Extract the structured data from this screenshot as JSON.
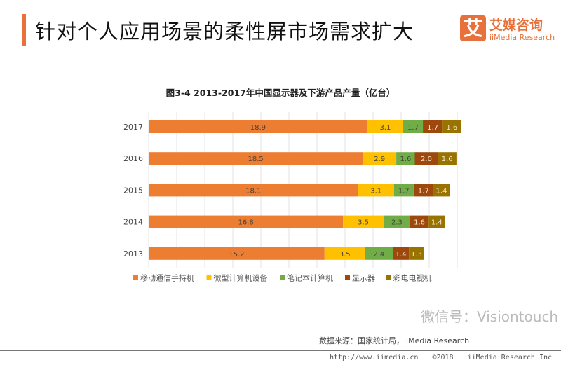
{
  "header": {
    "title": "针对个人应用场景的柔性屏市场需求扩大",
    "logo_cn": "艾媒咨询",
    "logo_en": "iiMedia Research",
    "logo_mark": "艾"
  },
  "chart_data": {
    "type": "bar",
    "orientation": "horizontal",
    "stacked": true,
    "title": "图3-4 2013-2017年中国显示器及下游产品产量（亿台）",
    "categories": [
      "2017",
      "2016",
      "2015",
      "2014",
      "2013"
    ],
    "series": [
      {
        "name": "移动通信手持机",
        "color": "#ED7D31",
        "values": [
          18.9,
          18.5,
          18.1,
          16.8,
          15.2
        ]
      },
      {
        "name": "微型计算机设备",
        "color": "#FFC000",
        "values": [
          3.1,
          2.9,
          3.1,
          3.5,
          3.5
        ]
      },
      {
        "name": "笔记本计算机",
        "color": "#70AD47",
        "values": [
          1.7,
          1.6,
          1.7,
          2.3,
          2.4
        ]
      },
      {
        "name": "显示器",
        "color": "#9E480E",
        "values": [
          1.7,
          2.0,
          1.7,
          1.6,
          1.4
        ]
      },
      {
        "name": "彩电电视机",
        "color": "#997300",
        "values": [
          1.6,
          1.6,
          1.4,
          1.4,
          1.3
        ]
      }
    ],
    "grid": true,
    "legend": "bottom",
    "data_labels": true
  },
  "footer": {
    "source": "数据来源：国家统计局，iiMedia Research",
    "watermark": "微信号：Visiontouch",
    "url": "http://www.iimedia.cn",
    "copyright": "©2018",
    "company": "iiMedia Research Inc"
  }
}
